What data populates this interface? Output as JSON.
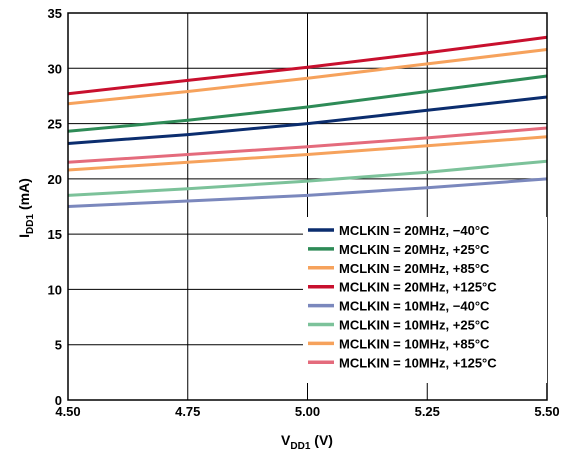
{
  "chart_data": {
    "type": "line",
    "title": "",
    "xlabel": {
      "main": "V",
      "sub": "DD1",
      "unit": " (V)"
    },
    "ylabel": {
      "main": "I",
      "sub": "DD1",
      "unit": " (mA)"
    },
    "xlim": [
      4.5,
      5.5
    ],
    "ylim": [
      0,
      35
    ],
    "xticks": [
      4.5,
      4.75,
      5.0,
      5.25,
      5.5
    ],
    "xtick_labels": [
      "4.50",
      "4.75",
      "5.00",
      "5.25",
      "5.50"
    ],
    "yticks": [
      0,
      5,
      10,
      15,
      20,
      25,
      30,
      35
    ],
    "ytick_labels": [
      "0",
      "5",
      "10",
      "15",
      "20",
      "25",
      "30",
      "35"
    ],
    "grid": true,
    "legend_position": "bottom-right",
    "x": [
      4.5,
      4.75,
      5.0,
      5.25,
      5.5
    ],
    "series": [
      {
        "name": "MCLKIN = 20MHz, −40°C",
        "color": "#0b2d6e",
        "values": [
          23.2,
          24.0,
          25.0,
          26.2,
          27.4
        ]
      },
      {
        "name": "MCLKIN = 20MHz, +25°C",
        "color": "#2e8b57",
        "values": [
          24.3,
          25.3,
          26.5,
          27.9,
          29.3
        ]
      },
      {
        "name": "MCLKIN = 20MHz, +85°C",
        "color": "#f6a25c",
        "values": [
          26.8,
          27.9,
          29.1,
          30.4,
          31.7
        ]
      },
      {
        "name": "MCLKIN = 20MHz, +125°C",
        "color": "#c8102e",
        "values": [
          27.7,
          28.9,
          30.1,
          31.4,
          32.8
        ]
      },
      {
        "name": "MCLKIN = 10MHz, −40°C",
        "color": "#7b88bd",
        "values": [
          17.5,
          18.0,
          18.5,
          19.2,
          20.0
        ]
      },
      {
        "name": "MCLKIN = 10MHz, +25°C",
        "color": "#7cc29a",
        "values": [
          18.5,
          19.1,
          19.8,
          20.6,
          21.6
        ]
      },
      {
        "name": "MCLKIN = 10MHz, +85°C",
        "color": "#f6a25c",
        "values": [
          20.8,
          21.5,
          22.2,
          23.0,
          23.8
        ]
      },
      {
        "name": "MCLKIN = 10MHz, +125°C",
        "color": "#e46b7c",
        "values": [
          21.5,
          22.2,
          22.9,
          23.7,
          24.6
        ]
      }
    ]
  }
}
